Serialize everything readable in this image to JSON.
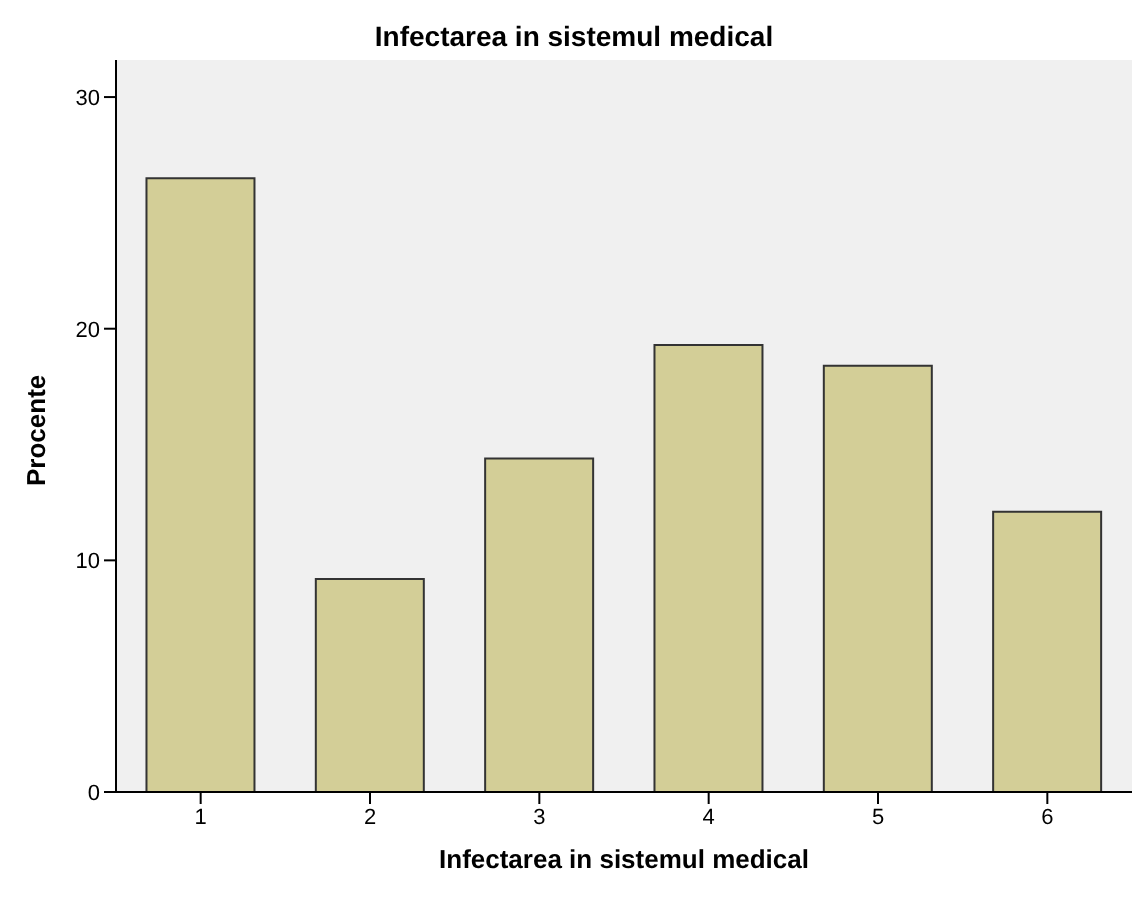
{
  "chart_data": {
    "type": "bar",
    "title": "Infectarea in sistemul medical",
    "xlabel": "Infectarea in sistemul medical",
    "ylabel": "Procente",
    "categories": [
      "1",
      "2",
      "3",
      "4",
      "5",
      "6"
    ],
    "values": [
      26.5,
      9.2,
      14.4,
      19.3,
      18.4,
      12.1
    ],
    "color": "#d3ce97",
    "ylim": [
      0,
      31.6
    ],
    "yticks": [
      0,
      10,
      20,
      30
    ],
    "grid": false
  }
}
